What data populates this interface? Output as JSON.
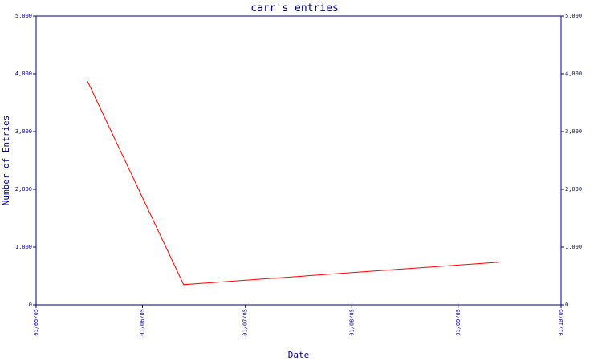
{
  "chart_data": {
    "type": "line",
    "title": "carr's entries",
    "xlabel": "Date",
    "ylabel": "Number of Entries",
    "ylim": [
      0,
      5000
    ],
    "y_ticks": [
      0,
      1000,
      2000,
      3000,
      4000,
      5000
    ],
    "y_tick_labels": [
      "0",
      "1,000",
      "2,000",
      "3,000",
      "4,000",
      "5,000"
    ],
    "x_ticks": [
      "2005-05-01",
      "2005-06-01",
      "2005-07-01",
      "2005-08-01",
      "2005-09-01",
      "2005-10-01"
    ],
    "x_tick_labels": [
      "01/05/05",
      "01/06/05",
      "01/07/05",
      "01/08/05",
      "01/09/05",
      "01/10/05"
    ],
    "xlim": [
      "2005-05-01",
      "2005-10-01"
    ],
    "grid": false,
    "series": [
      {
        "color": "#ff0000",
        "x": [
          "2005-05-16",
          "2005-06-13",
          "2005-09-13"
        ],
        "y": [
          3870,
          350,
          740
        ]
      }
    ]
  }
}
